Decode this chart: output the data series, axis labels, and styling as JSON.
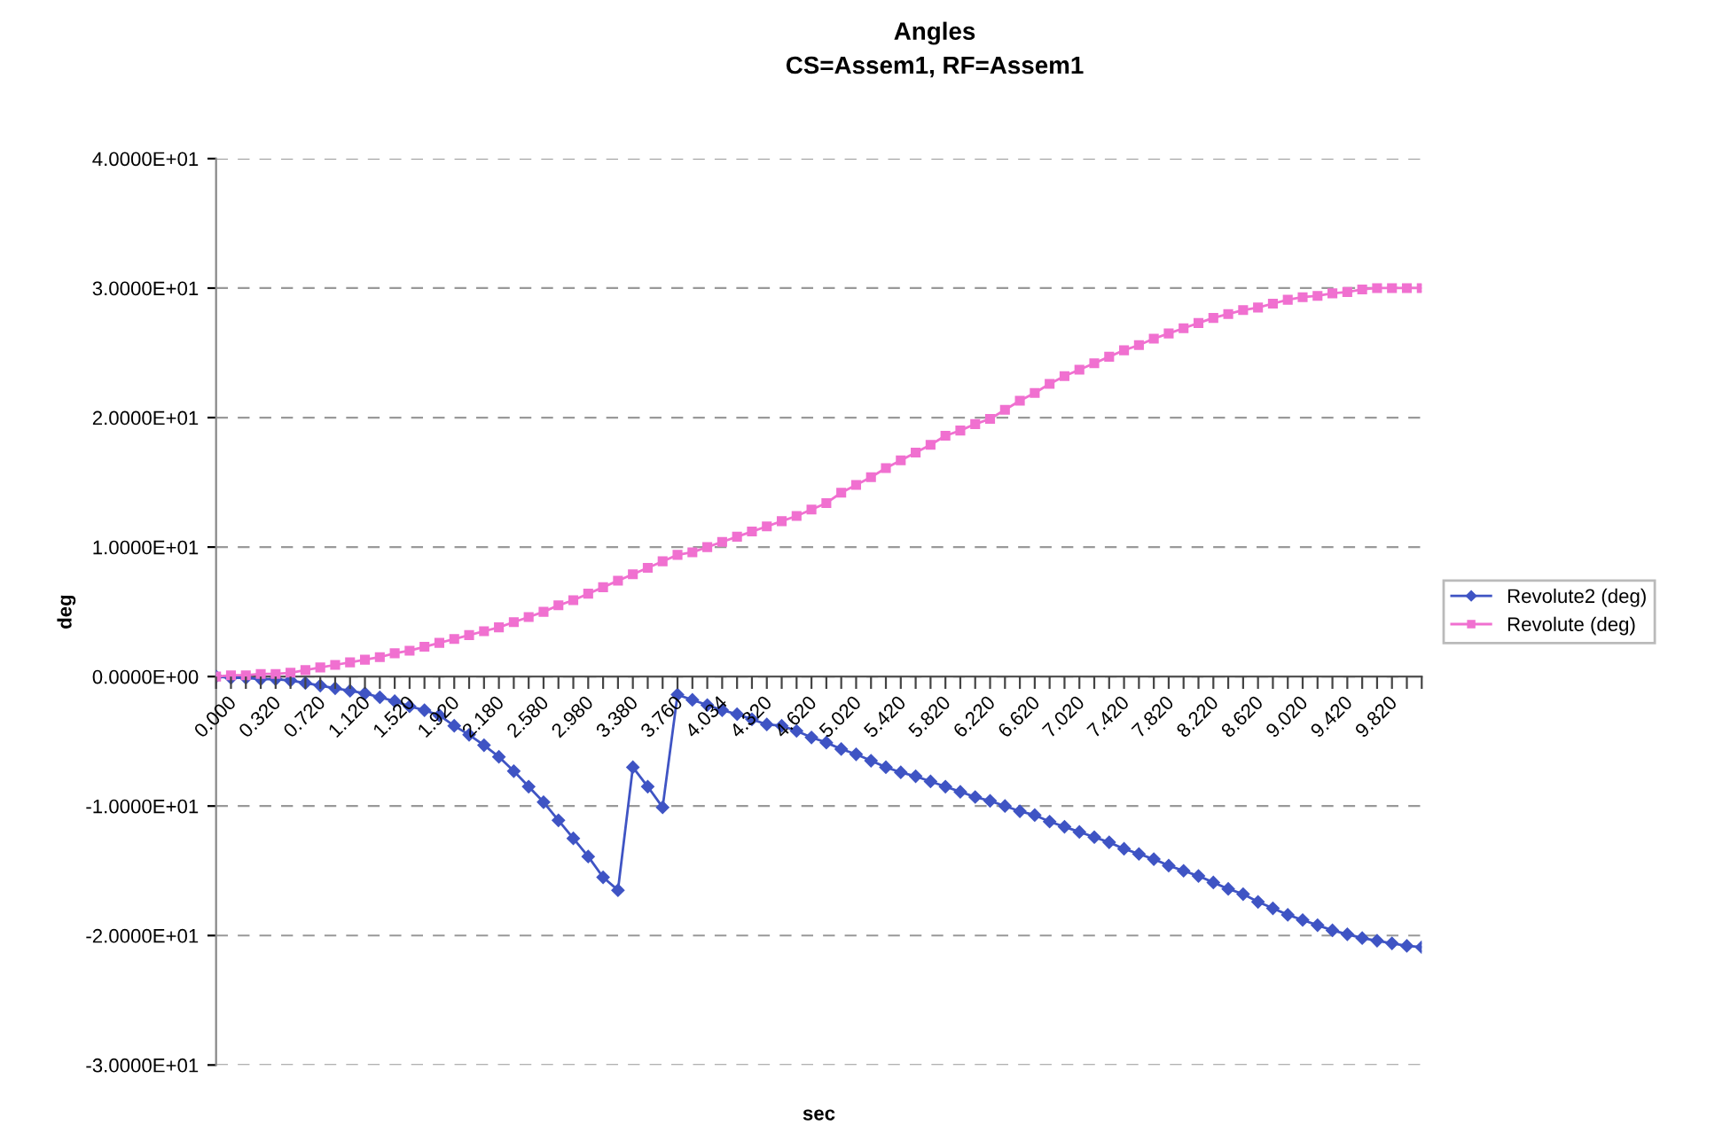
{
  "chart_data": {
    "type": "line",
    "title": "Angles",
    "subtitle": "CS=Assem1, RF=Assem1",
    "xlabel": "sec",
    "ylabel": "deg",
    "categories": [
      "0.000",
      null,
      null,
      "0.320",
      null,
      null,
      "0.720",
      null,
      null,
      "1.120",
      null,
      null,
      "1.520",
      null,
      null,
      "1.920",
      null,
      null,
      "2.180",
      null,
      null,
      "2.580",
      null,
      null,
      "2.980",
      null,
      null,
      "3.380",
      null,
      null,
      "3.760",
      null,
      null,
      "4.034",
      null,
      null,
      "4.320",
      null,
      null,
      "4.620",
      null,
      null,
      "5.020",
      null,
      null,
      "5.420",
      null,
      null,
      "5.820",
      null,
      null,
      "6.220",
      null,
      null,
      "6.620",
      null,
      null,
      "7.020",
      null,
      null,
      "7.420",
      null,
      null,
      "7.820",
      null,
      null,
      "8.220",
      null,
      null,
      "8.620",
      null,
      null,
      "9.020",
      null,
      null,
      "9.420",
      null,
      null,
      "9.820",
      null,
      null,
      null
    ],
    "series": [
      {
        "name": "Revolute2 (deg)",
        "color": "#3f54c4",
        "marker": "diamond",
        "values": [
          0,
          -0.1,
          -0.1,
          -0.2,
          -0.2,
          -0.3,
          -0.5,
          -0.7,
          -0.9,
          -1.1,
          -1.3,
          -1.6,
          -1.9,
          -2.3,
          -2.6,
          -3.0,
          -3.8,
          -4.5,
          -5.3,
          -6.2,
          -7.3,
          -8.5,
          -9.7,
          -11.1,
          -12.5,
          -13.9,
          -15.5,
          -16.5,
          -7.0,
          -8.5,
          -10.1,
          -1.4,
          -1.8,
          -2.2,
          -2.6,
          -2.9,
          -3.3,
          -3.7,
          -3.8,
          -4.2,
          -4.7,
          -5.1,
          -5.6,
          -6.0,
          -6.5,
          -7.0,
          -7.4,
          -7.7,
          -8.1,
          -8.5,
          -8.9,
          -9.3,
          -9.6,
          -10.0,
          -10.4,
          -10.7,
          -11.2,
          -11.6,
          -12.0,
          -12.4,
          -12.8,
          -13.3,
          -13.7,
          -14.1,
          -14.6,
          -15.0,
          -15.4,
          -15.9,
          -16.4,
          -16.8,
          -17.4,
          -17.9,
          -18.4,
          -18.8,
          -19.2,
          -19.6,
          -19.9,
          -20.2,
          -20.4,
          -20.6,
          -20.8,
          -20.9
        ]
      },
      {
        "name": "Revolute (deg)",
        "color": "#f070d0",
        "marker": "square",
        "values": [
          0,
          0.1,
          0.1,
          0.2,
          0.2,
          0.3,
          0.5,
          0.7,
          0.9,
          1.1,
          1.3,
          1.5,
          1.8,
          2.0,
          2.3,
          2.6,
          2.9,
          3.2,
          3.5,
          3.8,
          4.2,
          4.6,
          5.0,
          5.5,
          5.9,
          6.4,
          6.9,
          7.4,
          7.9,
          8.4,
          8.9,
          9.4,
          9.6,
          10.0,
          10.4,
          10.8,
          11.2,
          11.6,
          12.0,
          12.4,
          12.9,
          13.4,
          14.2,
          14.8,
          15.4,
          16.1,
          16.7,
          17.3,
          17.9,
          18.6,
          19.0,
          19.5,
          19.9,
          20.6,
          21.3,
          21.9,
          22.6,
          23.2,
          23.7,
          24.2,
          24.7,
          25.2,
          25.6,
          26.1,
          26.5,
          26.9,
          27.3,
          27.7,
          28.0,
          28.3,
          28.5,
          28.8,
          29.1,
          29.3,
          29.4,
          29.6,
          29.7,
          29.9,
          30.0,
          30.0,
          30.0,
          30.0
        ]
      }
    ],
    "ylim": [
      -30,
      40
    ],
    "yticks": [
      {
        "value": -30,
        "label": "-3.0000E+01"
      },
      {
        "value": -20,
        "label": "-2.0000E+01"
      },
      {
        "value": -10,
        "label": "-1.0000E+01"
      },
      {
        "value": 0,
        "label": "0.0000E+00"
      },
      {
        "value": 10,
        "label": "1.0000E+01"
      },
      {
        "value": 20,
        "label": "2.0000E+01"
      },
      {
        "value": 30,
        "label": "3.0000E+01"
      },
      {
        "value": 40,
        "label": "4.0000E+01"
      }
    ],
    "grid": "y",
    "legend": "right",
    "line_style": "solid"
  }
}
